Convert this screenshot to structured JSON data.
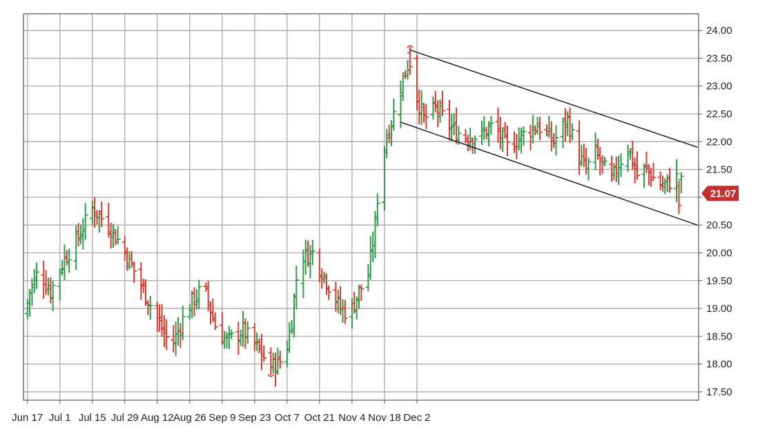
{
  "chart_data": {
    "type": "ohlc-bar",
    "title": "",
    "xlabel": "",
    "ylabel": "",
    "ylim": [
      17.35,
      24.3
    ],
    "y_ticks": [
      "24.00",
      "23.50",
      "23.00",
      "22.50",
      "22.00",
      "21.50",
      "21.00",
      "20.50",
      "20.00",
      "19.50",
      "19.00",
      "18.50",
      "18.00",
      "17.50"
    ],
    "x_ticks": [
      {
        "label": "Jun 17",
        "day": 1
      },
      {
        "label": "Jul 1",
        "day": 15
      },
      {
        "label": "Jul 15",
        "day": 29
      },
      {
        "label": "Jul 29",
        "day": 43
      },
      {
        "label": "Aug 12",
        "day": 57
      },
      {
        "label": "Aug 26",
        "day": 71
      },
      {
        "label": "Sep 9",
        "day": 85
      },
      {
        "label": "Sep 23",
        "day": 99
      },
      {
        "label": "Oct 7",
        "day": 113
      },
      {
        "label": "Oct 21",
        "day": 127
      },
      {
        "label": "Nov 4",
        "day": 141
      },
      {
        "label": "Nov 18",
        "day": 155
      },
      {
        "label": "Dec 2",
        "day": 169
      }
    ],
    "grid": true,
    "last_price": {
      "label": "21.07",
      "value": 21.07
    },
    "colors": {
      "up": "#2e9a47",
      "down": "#d63a2e",
      "neutral": "#3a5fc8",
      "grid": "#b3a6a6",
      "badge": "#c62f2f",
      "channel": "#222222"
    },
    "close_path": [
      [
        0,
        18.9
      ],
      [
        2,
        19.3
      ],
      [
        6,
        19.7
      ],
      [
        11,
        19.3
      ],
      [
        17,
        19.9
      ],
      [
        22,
        20.2
      ],
      [
        29,
        20.8
      ],
      [
        36,
        20.5
      ],
      [
        42,
        20.1
      ],
      [
        48,
        19.6
      ],
      [
        56,
        18.9
      ],
      [
        63,
        18.3
      ],
      [
        70,
        19.0
      ],
      [
        77,
        19.4
      ],
      [
        82,
        18.7
      ],
      [
        87,
        18.4
      ],
      [
        94,
        18.6
      ],
      [
        100,
        18.3
      ],
      [
        106,
        17.95
      ],
      [
        112,
        18.1
      ],
      [
        115,
        18.8
      ],
      [
        118,
        19.9
      ],
      [
        124,
        20.0
      ],
      [
        130,
        19.5
      ],
      [
        136,
        19.0
      ],
      [
        140,
        18.9
      ],
      [
        144,
        19.3
      ],
      [
        148,
        19.6
      ],
      [
        151,
        20.5
      ],
      [
        153,
        21.5
      ],
      [
        156,
        22.1
      ],
      [
        159,
        22.5
      ],
      [
        162,
        23.0
      ],
      [
        166,
        23.5
      ],
      [
        169,
        22.8
      ],
      [
        172,
        22.4
      ],
      [
        177,
        22.6
      ],
      [
        181,
        22.4
      ],
      [
        185,
        22.2
      ],
      [
        190,
        22.1
      ],
      [
        196,
        22.1
      ],
      [
        202,
        22.3
      ],
      [
        208,
        21.9
      ],
      [
        214,
        22.1
      ],
      [
        221,
        22.3
      ],
      [
        228,
        22.0
      ],
      [
        234,
        22.4
      ],
      [
        238,
        21.8
      ],
      [
        242,
        21.5
      ],
      [
        246,
        21.8
      ],
      [
        250,
        21.5
      ],
      [
        253,
        21.3
      ],
      [
        256,
        21.6
      ],
      [
        260,
        21.9
      ],
      [
        264,
        21.4
      ],
      [
        268,
        21.5
      ],
      [
        272,
        21.3
      ],
      [
        275,
        21.2
      ],
      [
        279,
        21.3
      ],
      [
        283,
        21.4
      ]
    ],
    "special_bars": [
      {
        "day": 166,
        "style": "down-cap",
        "low": 23.2,
        "high": 23.7
      },
      {
        "day": 106,
        "style": "down-cap-low",
        "low": 17.8,
        "high": 18.3
      },
      {
        "day": 203,
        "style": "neutral",
        "low": 21.9,
        "high": 22.6
      },
      {
        "day": 282,
        "style": "down-last",
        "low": 20.7,
        "high": 21.3
      }
    ],
    "channel_upper": [
      [
        166,
        23.65
      ],
      [
        290,
        21.9
      ]
    ],
    "channel_lower": [
      [
        162,
        22.35
      ],
      [
        290,
        20.5
      ]
    ]
  }
}
